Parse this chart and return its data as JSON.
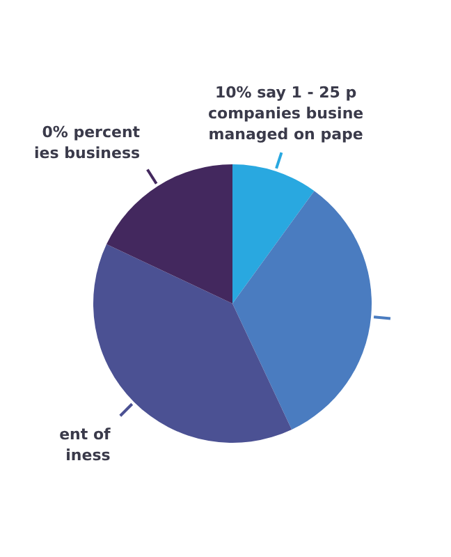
{
  "chart_data": {
    "type": "pie",
    "categories": [
      "10% say 1 - 25 p\ncompanies busine\nmanaged on pape",
      null,
      "ent of\niness",
      "0% percent\nies business"
    ],
    "values": [
      10,
      33,
      39,
      18
    ],
    "colors": [
      "#29a8e0",
      "#4a7cc0",
      "#4b5193",
      "#43285e"
    ]
  }
}
